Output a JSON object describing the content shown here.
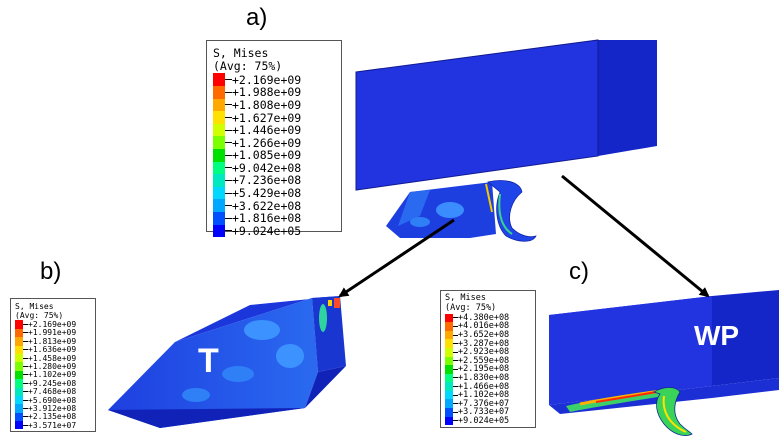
{
  "labels": {
    "a": "a)",
    "b": "b)",
    "c": "c)"
  },
  "parts": {
    "tool": "T",
    "workpiece": "WP"
  },
  "legend_a": {
    "title": "S, Mises",
    "subtitle": "(Avg: 75%)",
    "values": [
      "+2.169e+09",
      "+1.988e+09",
      "+1.808e+09",
      "+1.627e+09",
      "+1.446e+09",
      "+1.266e+09",
      "+1.085e+09",
      "+9.042e+08",
      "+7.236e+08",
      "+5.429e+08",
      "+3.622e+08",
      "+1.816e+08",
      "+9.024e+05"
    ]
  },
  "legend_b": {
    "title": "S, Mises",
    "subtitle": "(Avg: 75%)",
    "values": [
      "+2.169e+09",
      "+1.991e+09",
      "+1.813e+09",
      "+1.636e+09",
      "+1.458e+09",
      "+1.280e+09",
      "+1.102e+09",
      "+9.245e+08",
      "+7.468e+08",
      "+5.690e+08",
      "+3.912e+08",
      "+2.135e+08",
      "+3.571e+07"
    ]
  },
  "legend_c": {
    "title": "S, Mises",
    "subtitle": "(Avg: 75%)",
    "values": [
      "+4.380e+08",
      "+4.016e+08",
      "+3.652e+08",
      "+3.287e+08",
      "+2.923e+08",
      "+2.559e+08",
      "+2.195e+08",
      "+1.830e+08",
      "+1.466e+08",
      "+1.102e+08",
      "+7.376e+07",
      "+3.733e+07",
      "+9.024e+05"
    ]
  },
  "colors": {
    "contour": [
      "#ff0000",
      "#ff6a00",
      "#ffa800",
      "#ffe000",
      "#cfff00",
      "#7cff00",
      "#00e000",
      "#00ff80",
      "#00e8c0",
      "#00d8ff",
      "#00a8ff",
      "#0050ff",
      "#0000ff"
    ],
    "body_blue": "#1a2bd8",
    "arrow": "#000000"
  }
}
